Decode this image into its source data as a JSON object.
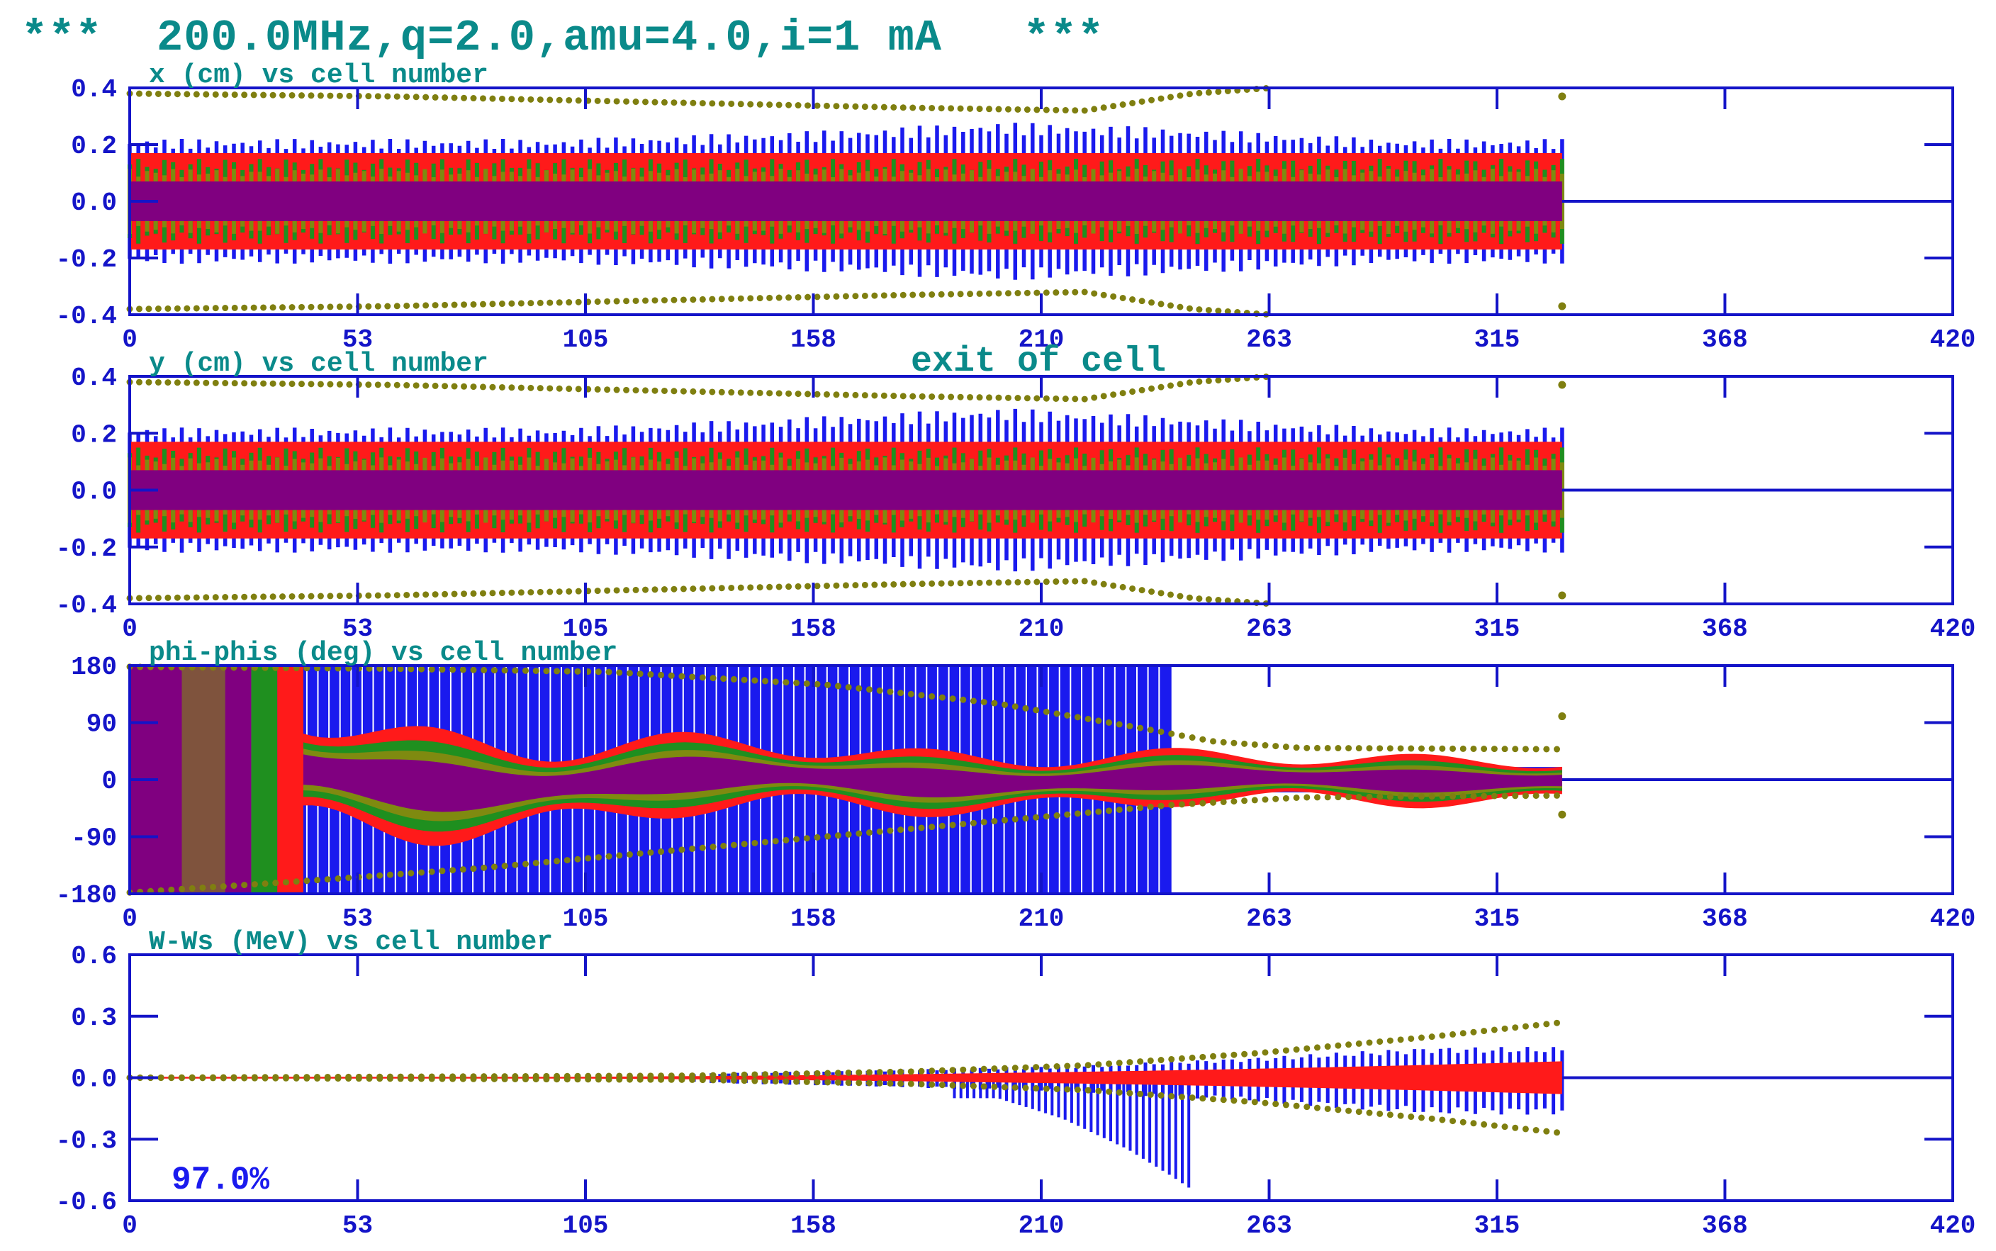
{
  "title": "***  200.0MHz,q=2.0,amu=4.0,i=1 mA   ***",
  "colors": {
    "axis": "#1414c8",
    "title": "#0a8a8a",
    "outer_particles": "#1a1aee",
    "red_core": "#ff1a1a",
    "green_core": "#1f8f1f",
    "olive_core": "#7f8a10",
    "purple_core": "#800080",
    "envelope": "#7f7f10"
  },
  "chart_data": [
    {
      "type": "scatter",
      "panel": "x",
      "title": "x (cm) vs cell number",
      "xlabel": "cell number",
      "ylabel": "x (cm)",
      "xlim": [
        0,
        420
      ],
      "ylim": [
        -0.4,
        0.4
      ],
      "xticks": [
        "0",
        "53",
        "105",
        "158",
        "210",
        "263",
        "315",
        "368",
        "420"
      ],
      "yticks": [
        "0.4",
        "0.2",
        "0.0",
        "-0.2",
        "-0.4"
      ],
      "beam_end_cell": 330,
      "series": [
        {
          "role": "outer",
          "x": [
            0,
            100,
            160,
            200,
            240,
            290,
            330
          ],
          "ymax": [
            0.22,
            0.22,
            0.25,
            0.28,
            0.26,
            0.22,
            0.22
          ]
        },
        {
          "role": "envelope",
          "x": [
            0,
            60,
            120,
            180,
            220,
            245,
            263
          ],
          "ymax": [
            0.38,
            0.37,
            0.35,
            0.33,
            0.32,
            0.38,
            0.4
          ]
        },
        {
          "role": "envelope-end",
          "x": [
            330
          ],
          "y": [
            0.37
          ]
        }
      ]
    },
    {
      "type": "scatter",
      "panel": "y",
      "title": "y (cm) vs cell number",
      "annotation": "exit of cell",
      "xlabel": "cell number",
      "ylabel": "y (cm)",
      "xlim": [
        0,
        420
      ],
      "ylim": [
        -0.4,
        0.4
      ],
      "xticks": [
        "0",
        "53",
        "105",
        "158",
        "210",
        "263",
        "315",
        "368",
        "420"
      ],
      "yticks": [
        "0.4",
        "0.2",
        "0.0",
        "-0.2",
        "-0.4"
      ],
      "beam_end_cell": 330,
      "series": [
        {
          "role": "outer",
          "x": [
            0,
            100,
            160,
            200,
            240,
            290,
            330
          ],
          "ymax": [
            0.22,
            0.22,
            0.26,
            0.29,
            0.26,
            0.22,
            0.22
          ]
        },
        {
          "role": "envelope",
          "x": [
            0,
            60,
            120,
            180,
            220,
            245,
            263
          ],
          "ymax": [
            0.38,
            0.37,
            0.35,
            0.33,
            0.32,
            0.38,
            0.4
          ]
        },
        {
          "role": "envelope-end",
          "x": [
            330
          ],
          "y": [
            0.37
          ]
        }
      ]
    },
    {
      "type": "scatter",
      "panel": "phi",
      "title": "phi-phis (deg) vs cell number",
      "xlabel": "cell number",
      "ylabel": "phi-phis (deg)",
      "xlim": [
        0,
        420
      ],
      "ylim": [
        -180,
        180
      ],
      "xticks": [
        "0",
        "53",
        "105",
        "158",
        "210",
        "263",
        "315",
        "368",
        "420"
      ],
      "yticks": [
        "180",
        "90",
        "0",
        "-90",
        "-180"
      ],
      "beam_end_cell": 330,
      "series": [
        {
          "role": "outer",
          "x": [
            0,
            240,
            250,
            330
          ],
          "ymax": [
            180,
            180,
            20,
            15
          ]
        },
        {
          "role": "envelope-upper",
          "x": [
            0,
            60,
            110,
            160,
            200,
            230,
            250,
            270,
            330
          ],
          "y": [
            178,
            175,
            170,
            150,
            120,
            85,
            60,
            50,
            48
          ]
        },
        {
          "role": "envelope-lower",
          "x": [
            0,
            40,
            80,
            120,
            160,
            200,
            240,
            270,
            330
          ],
          "y": [
            -178,
            -160,
            -140,
            -115,
            -90,
            -65,
            -40,
            -28,
            -25
          ]
        },
        {
          "role": "envelope-end",
          "x": [
            330,
            330
          ],
          "y": [
            100,
            -55
          ]
        }
      ]
    },
    {
      "type": "scatter",
      "panel": "w",
      "title": "W-Ws (MeV) vs cell number",
      "xlabel": "cell number",
      "ylabel": "W-Ws (MeV)",
      "xlim": [
        0,
        420
      ],
      "ylim": [
        -0.6,
        0.6
      ],
      "xticks": [
        "0",
        "53",
        "105",
        "158",
        "210",
        "263",
        "315",
        "368",
        "420"
      ],
      "yticks": [
        "0.6",
        "0.3",
        "0.0",
        "-0.3",
        "-0.6"
      ],
      "transmission_label": "97.0%",
      "beam_end_cell": 330,
      "series": [
        {
          "role": "envelope-upper",
          "x": [
            0,
            130,
            180,
            220,
            260,
            300,
            330
          ],
          "y": [
            0.0,
            0.01,
            0.03,
            0.06,
            0.12,
            0.2,
            0.27
          ]
        },
        {
          "role": "envelope-lower",
          "x": [
            0,
            130,
            180,
            220,
            260,
            300,
            330
          ],
          "y": [
            0.0,
            -0.01,
            -0.03,
            -0.06,
            -0.12,
            -0.2,
            -0.27
          ]
        },
        {
          "role": "outer",
          "x": [
            130,
            180,
            220,
            260,
            300,
            330
          ],
          "ymax": [
            0.02,
            0.04,
            0.06,
            0.1,
            0.15,
            0.15
          ]
        },
        {
          "role": "tail",
          "x": [
            200,
            215,
            230,
            240,
            245
          ],
          "y": [
            -0.1,
            -0.2,
            -0.35,
            -0.48,
            -0.55
          ]
        }
      ]
    }
  ]
}
